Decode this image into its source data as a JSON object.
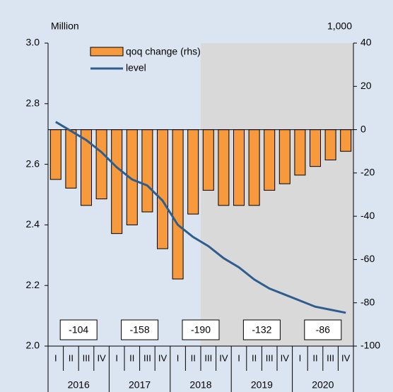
{
  "chart_data": {
    "type": "bar_line",
    "left_axis_label": "Million",
    "right_axis_label": "1,000",
    "categories": [
      "I",
      "II",
      "III",
      "IV",
      "I",
      "II",
      "III",
      "IV",
      "I",
      "II",
      "III",
      "IV",
      "I",
      "II",
      "III",
      "IV",
      "I",
      "II",
      "III",
      "IV"
    ],
    "years": [
      "2016",
      "2017",
      "2018",
      "2019",
      "2020"
    ],
    "annual_labels": [
      -104,
      -158,
      -190,
      -132,
      -86
    ],
    "series": [
      {
        "name": "qoq change (rhs)",
        "color": "#f79a3e",
        "axis": "y2",
        "values": [
          -23,
          -27,
          -35,
          -32,
          -48,
          -44,
          -38,
          -55,
          -69,
          -39,
          -28,
          -35,
          -35,
          -35,
          -28,
          -25,
          -21,
          -17,
          -14,
          -10
        ]
      },
      {
        "name": "level",
        "color": "#2e5d8e",
        "values": [
          2.74,
          2.71,
          2.68,
          2.64,
          2.59,
          2.55,
          2.53,
          2.48,
          2.4,
          2.36,
          2.33,
          2.29,
          2.26,
          2.22,
          2.19,
          2.17,
          2.15,
          2.13,
          2.12,
          2.11
        ]
      }
    ],
    "shade_start_index": 10,
    "shade_color": "#d9d9d9",
    "ylim": [
      2.0,
      3.0
    ],
    "yticks": [
      {
        "value": 2,
        "label": "2.0"
      },
      {
        "value": 2.2,
        "label": "2.2"
      },
      {
        "value": 2.4,
        "label": "2.4"
      },
      {
        "value": 2.6,
        "label": "2.6"
      },
      {
        "value": 2.8,
        "label": "2.8"
      },
      {
        "value": 3,
        "label": "3.0"
      }
    ],
    "y2lim": [
      -100,
      40
    ],
    "y2ticks": [
      -100,
      -80,
      -60,
      -40,
      -20,
      0,
      20,
      40
    ]
  }
}
